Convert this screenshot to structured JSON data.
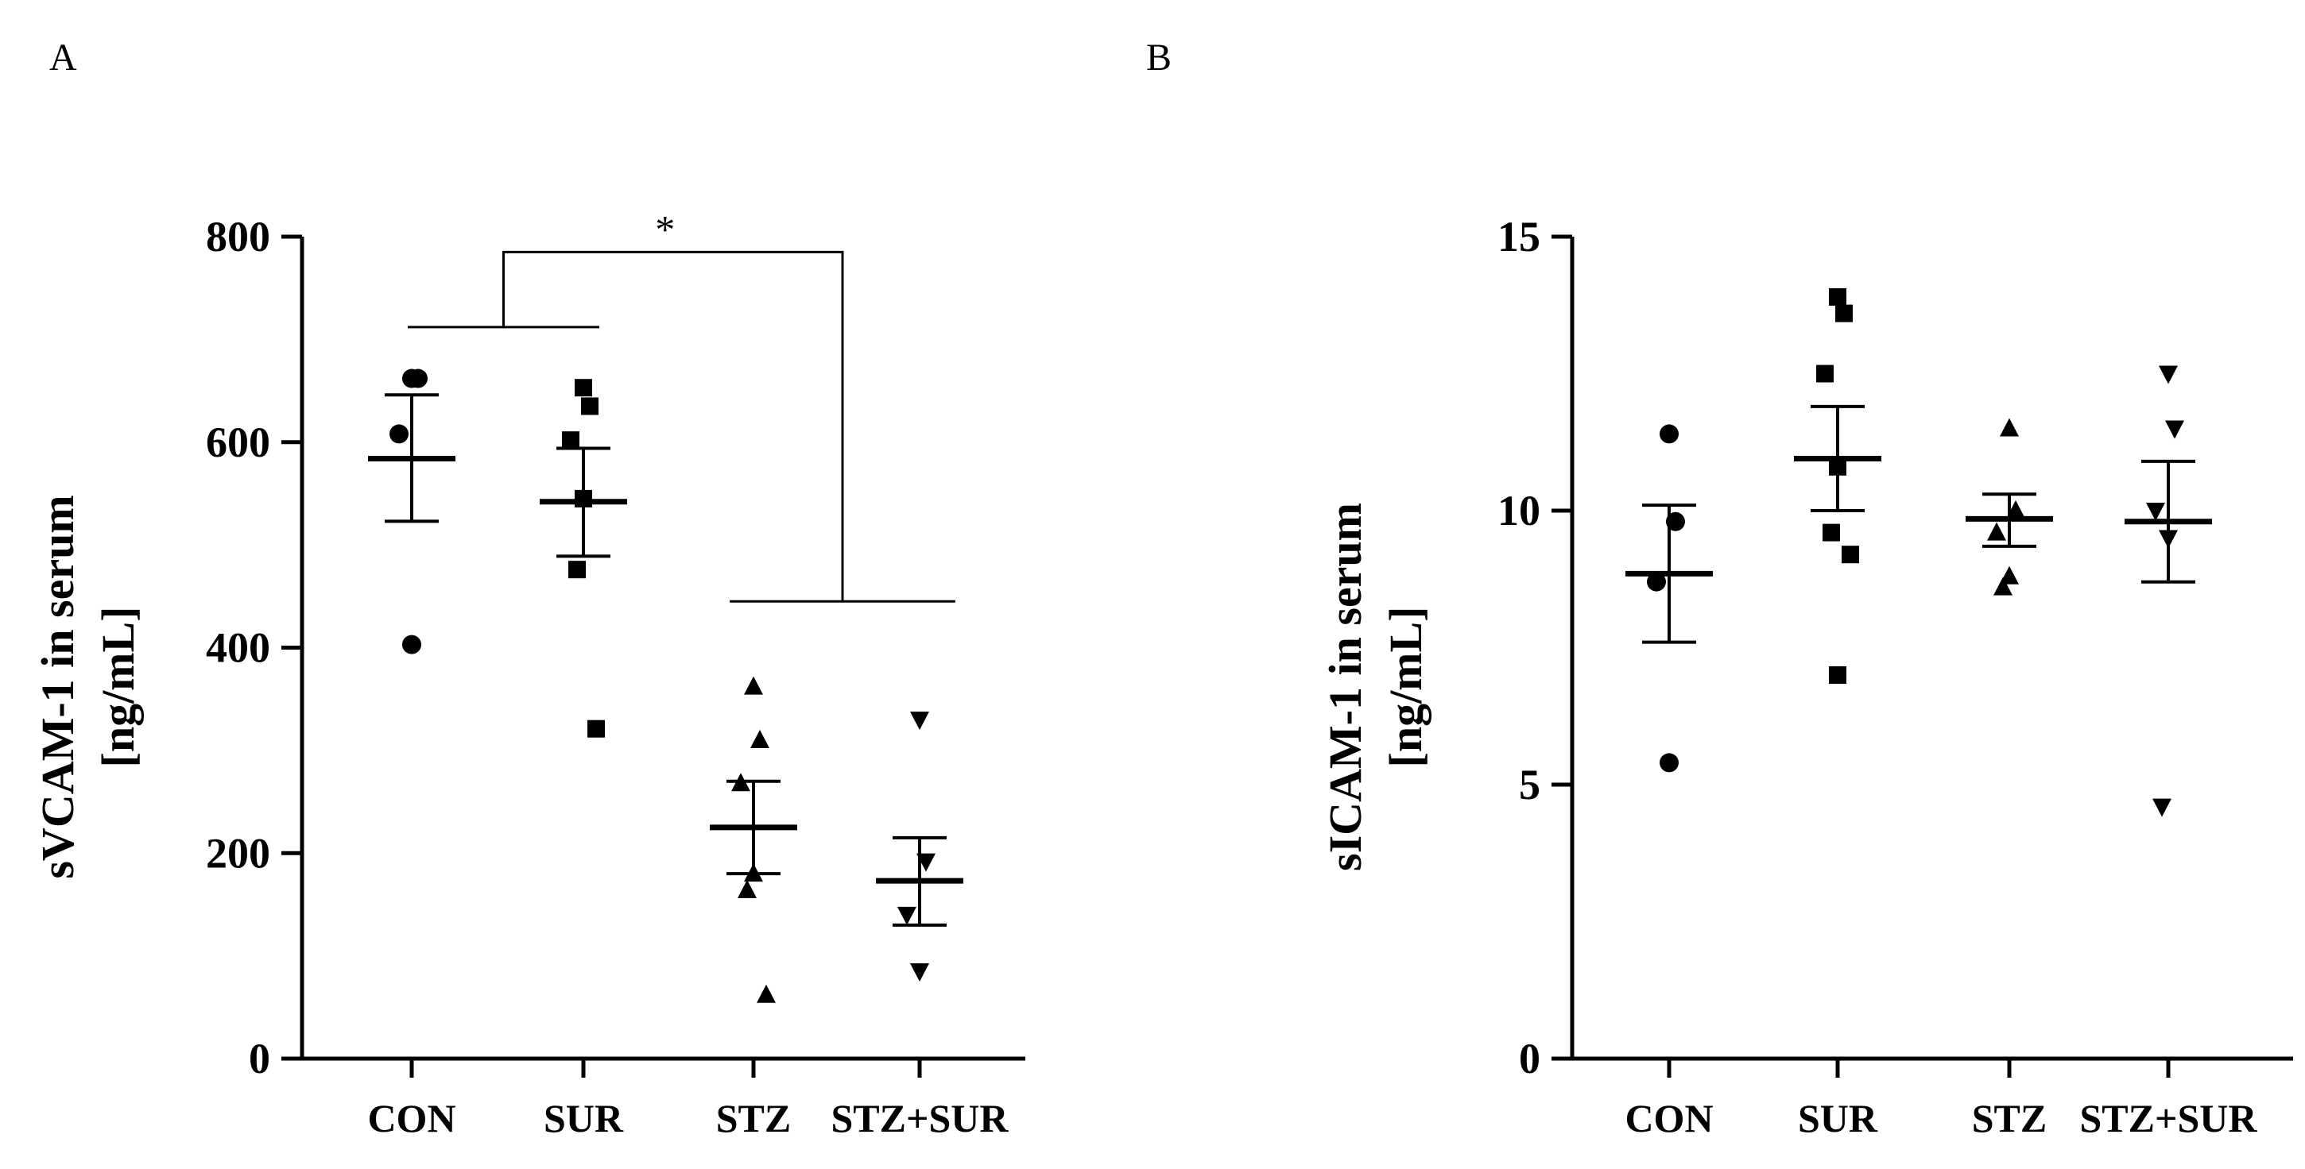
{
  "chart_data": [
    {
      "panel": "A",
      "type": "scatter",
      "ylabel_line1": "sVCAM-1 in serum",
      "ylabel_line2": "[ng/mL]",
      "ylim": [
        0,
        800
      ],
      "yticks": [
        0,
        200,
        400,
        600,
        800
      ],
      "categories": [
        "CON",
        "SUR",
        "STZ",
        "STZ+SUR"
      ],
      "groups": [
        {
          "name": "CON",
          "marker": "circle",
          "points": [
            662,
            662,
            608,
            403
          ],
          "mean": 584,
          "sem_low": 523,
          "sem_high": 646
        },
        {
          "name": "SUR",
          "marker": "square",
          "points": [
            653,
            635,
            602,
            545,
            476,
            321
          ],
          "mean": 542,
          "sem_low": 489,
          "sem_high": 594
        },
        {
          "name": "STZ",
          "marker": "triangle-up",
          "points": [
            362,
            310,
            268,
            180,
            164,
            62
          ],
          "mean": 225,
          "sem_low": 180,
          "sem_high": 270
        },
        {
          "name": "STZ+SUR",
          "marker": "triangle-down",
          "points": [
            330,
            192,
            140,
            85
          ],
          "mean": 173,
          "sem_low": 130,
          "sem_high": 215
        }
      ],
      "significance": {
        "label": "*",
        "left_level": 712,
        "right_level": 445,
        "top_level": 785
      }
    },
    {
      "panel": "B",
      "type": "scatter",
      "ylabel_line1": "sICAM-1 in serum",
      "ylabel_line2": "[ng/mL]",
      "ylim": [
        0,
        15
      ],
      "yticks": [
        0,
        5,
        10,
        15
      ],
      "categories": [
        "CON",
        "SUR",
        "STZ",
        "STZ+SUR"
      ],
      "groups": [
        {
          "name": "CON",
          "marker": "circle",
          "points": [
            11.4,
            9.8,
            8.7,
            5.4
          ],
          "mean": 8.85,
          "sem_low": 7.6,
          "sem_high": 10.1
        },
        {
          "name": "SUR",
          "marker": "square",
          "points": [
            13.9,
            13.6,
            12.5,
            10.8,
            9.6,
            9.2,
            7.0
          ],
          "mean": 10.95,
          "sem_low": 10.0,
          "sem_high": 11.9
        },
        {
          "name": "STZ",
          "marker": "triangle-up",
          "points": [
            11.5,
            10.0,
            9.6,
            8.8,
            8.6
          ],
          "mean": 9.85,
          "sem_low": 9.35,
          "sem_high": 10.3
        },
        {
          "name": "STZ+SUR",
          "marker": "triangle-down",
          "points": [
            12.5,
            11.5,
            10.0,
            9.5,
            4.6
          ],
          "mean": 9.8,
          "sem_low": 8.7,
          "sem_high": 10.9
        }
      ]
    }
  ]
}
